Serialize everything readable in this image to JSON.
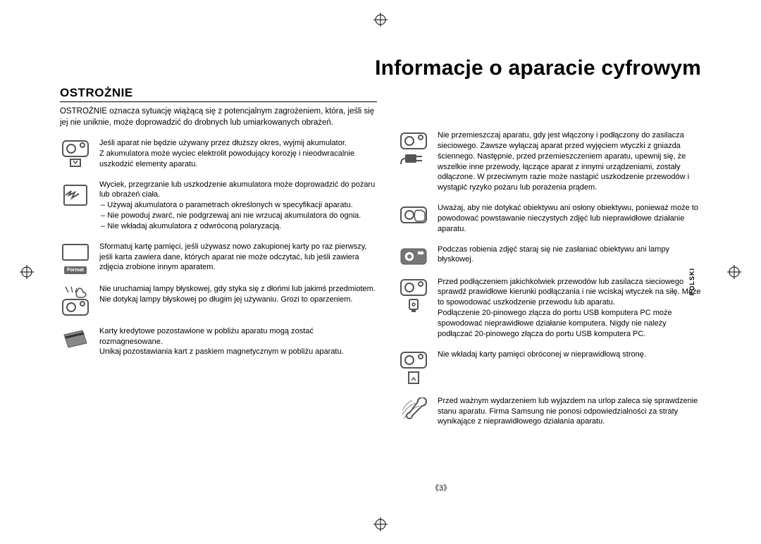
{
  "title": "Informacje o aparacie cyfrowym",
  "section_heading": "OSTROŻNIE",
  "intro": "OSTROŻNIE oznacza sytuację wiążącą się z potencjalnym zagrożeniem, która, jeśli się jej nie uniknie, może doprowadzić do drobnych lub umiarkowanych obrażeń.",
  "side_tab": "POLSKI",
  "page_num": "《3》",
  "format_label": "Format",
  "left_items": [
    {
      "icon": "camera-down",
      "text": "Jeśli aparat nie będzie używany przez dłuższy okres, wyjmij akumulator.\nZ akumulatora może wyciec elektrolit powodujący korozję i nieodwracalnie uszkodzić elementy aparatu."
    },
    {
      "icon": "broken-battery",
      "text_lead": "Wyciek, przegrzanie lub uszkodzenie akumulatora może doprowadzić do pożaru lub obrażeń ciała.",
      "bullets": [
        "Używaj akumulatora o parametrach określonych w specyfikacji aparatu.",
        "Nie powoduj zwarć, nie podgrzewaj ani nie wrzucaj akumulatora do ognia.",
        "Nie wkładaj akumulatora z odwróconą polaryzacją."
      ]
    },
    {
      "icon": "format-card",
      "text": "Sformatuj kartę pamięci, jeśli używasz nowo zakupionej karty po raz pierwszy, jeśli karta zawiera dane, których aparat nie może odczytać, lub jeśli zawiera zdjęcia zrobione innym aparatem."
    },
    {
      "icon": "flash-hand",
      "text": "Nie uruchamiaj lampy błyskowej, gdy styka się z dłońmi lub jakimś przedmiotem.\nNie dotykaj lampy błyskowej po długim jej używaniu. Grozi to oparzeniem."
    },
    {
      "icon": "credit-card",
      "text": "Karty kredytowe pozostawione w pobliżu aparatu mogą zostać rozmagnesowane.\nUnikaj pozostawiania kart z paskiem magnetycznym w pobliżu aparatu."
    }
  ],
  "right_items": [
    {
      "icon": "camera-plug",
      "text": "Nie przemieszczaj aparatu, gdy jest włączony i podłączony do zasilacza sieciowego. Zawsze wyłączaj aparat przed wyjęciem wtyczki z gniazda ściennego. Następnie, przed przemieszczeniem aparatu, upewnij się, że wszelkie inne przewody, łączące aparat z innymi urządzeniami, zostały odłączone. W przeciwnym razie może nastąpić uszkodzenie przewodów i wystąpić ryzyko pożaru lub porażenia prądem."
    },
    {
      "icon": "hand-lens",
      "text": "Uważaj, aby nie dotykać obiektywu ani osłony obiektywu, ponieważ może to powodować powstawanie nieczystych zdjęć lub nieprawidłowe działanie aparatu."
    },
    {
      "icon": "camera-front",
      "text": "Podczas robienia zdjęć staraj się nie zasłaniać obiektywu ani lampy błyskowej."
    },
    {
      "icon": "camera-usb",
      "text": "Przed podłączeniem jakichkolwiek przewodów lub zasilacza sieciowego sprawdź prawidłowe kierunki podłączania i nie wciskaj wtyczek na siłę. Może to spowodować uszkodzenie przewodu lub aparatu.\nPodłączenie 20-pinowego złącza do portu USB komputera PC może spowodować nieprawidłowe działanie komputera. Nigdy nie należy podłączać 20-pinowego złącza do portu USB komputera PC."
    },
    {
      "icon": "camera-card",
      "text": "Nie wkładaj karty pamięci obróconej w nieprawidłową stronę."
    },
    {
      "icon": "wrench",
      "text": "Przed ważnym wydarzeniem lub wyjazdem na urlop zaleca się sprawdzenie stanu aparatu. Firma Samsung nie ponosi odpowiedzialności za straty wynikające z nieprawidłowego działania aparatu."
    }
  ]
}
